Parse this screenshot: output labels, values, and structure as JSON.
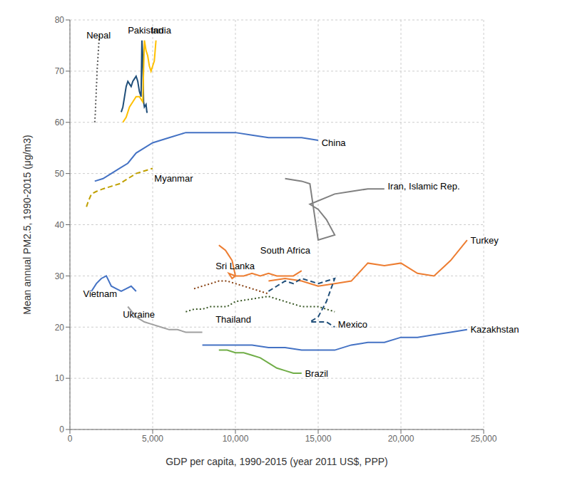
{
  "chart_data": {
    "type": "line",
    "xlabel": "GDP per capita,  1990-2015 (year 2011 US$, PPP)",
    "ylabel": "Mean annual PM2.5, 1990-2015 (μg/m3)",
    "xlim": [
      0,
      25000
    ],
    "ylim": [
      0,
      80
    ],
    "xticks": [
      0,
      {
        "value": 5000,
        "label": "5,000"
      },
      {
        "value": 10000,
        "label": "10,000"
      },
      {
        "value": 15000,
        "label": "15,000"
      },
      {
        "value": 20000,
        "label": "20,000"
      },
      {
        "value": 25000,
        "label": "25,000"
      }
    ],
    "yticks": [
      0,
      10,
      20,
      30,
      40,
      50,
      60,
      70,
      80
    ],
    "grid": true,
    "series": [
      {
        "name": "Nepal",
        "color": "#595959",
        "line_style": "dotted",
        "x": [
          1500,
          1520,
          1540,
          1560,
          1580,
          1600,
          1620,
          1640,
          1660,
          1680,
          1700,
          1720,
          1740,
          1760,
          1780,
          1800
        ],
        "values": [
          60,
          61,
          62,
          64,
          65,
          67,
          68,
          70,
          71,
          72,
          73,
          74,
          75,
          76,
          77,
          77
        ]
      },
      {
        "name": "Pakistan",
        "color": "#1f4e79",
        "line_style": "solid",
        "x": [
          3100,
          3200,
          3300,
          3400,
          3500,
          3600,
          3700,
          3800,
          3900,
          4000,
          4100,
          4200,
          4300,
          4350,
          4400,
          4450,
          4500,
          4600,
          4650,
          4700
        ],
        "values": [
          62,
          63,
          65,
          67,
          68,
          67.5,
          67,
          68,
          68.5,
          69,
          68,
          66,
          65,
          76,
          73,
          64,
          63,
          63.5,
          62,
          62
        ]
      },
      {
        "name": "India",
        "color": "#ffc000",
        "line_style": "solid",
        "x": [
          3200,
          3400,
          3600,
          3800,
          4000,
          4200,
          4400,
          4500,
          4600,
          4700,
          4800,
          4900,
          5000,
          5100,
          5200
        ],
        "values": [
          60,
          61,
          63,
          64,
          65,
          65,
          64,
          76,
          74,
          73,
          71,
          70,
          71,
          72,
          76
        ]
      },
      {
        "name": "China",
        "color": "#4472c4",
        "line_style": "solid",
        "x": [
          1500,
          2000,
          2500,
          3000,
          3500,
          4000,
          5000,
          6000,
          7000,
          8000,
          9000,
          10000,
          11000,
          12000,
          13000,
          14000,
          15000
        ],
        "values": [
          48.5,
          49,
          50,
          51,
          52,
          54,
          56,
          57,
          58,
          58,
          58,
          58,
          57.5,
          57,
          57,
          57,
          56.5
        ]
      },
      {
        "name": "Myanmar",
        "color": "#c0a000",
        "line_style": "dashed",
        "x": [
          1000,
          1100,
          1300,
          1600,
          2000,
          2500,
          3000,
          3500,
          4000,
          4500,
          5000
        ],
        "values": [
          43.5,
          44.5,
          46,
          46.5,
          47,
          47.5,
          48,
          49,
          50,
          50.5,
          51
        ]
      },
      {
        "name": "Iran, Islamic Rep.",
        "color": "#808080",
        "line_style": "solid",
        "x": [
          13000,
          14000,
          14500,
          15000,
          16000,
          15500,
          15000,
          14500,
          16000,
          17000,
          18000,
          19000
        ],
        "values": [
          49,
          48.5,
          48,
          37,
          38,
          41,
          43,
          44,
          46,
          46.5,
          47,
          47
        ]
      },
      {
        "name": "South Africa",
        "color": "#ed7d31",
        "line_style": "solid",
        "x": [
          9000,
          9200,
          9400,
          9600,
          9800,
          10000,
          9800,
          9600,
          10000,
          10500,
          11000,
          11500,
          12000,
          12500,
          13000,
          13500,
          14000
        ],
        "values": [
          36,
          35.5,
          35,
          34,
          33,
          30,
          29.5,
          30.5,
          30,
          30,
          30.5,
          30,
          30.5,
          30,
          30,
          30,
          31
        ]
      },
      {
        "name": "Sri Lanka",
        "color": "#843c0c",
        "line_style": "dotted",
        "x": [
          7500,
          8000,
          8500,
          9000,
          9500,
          10000,
          10500,
          11000,
          11500,
          12000
        ],
        "values": [
          27.5,
          28,
          28.5,
          29,
          29,
          28.5,
          28,
          27.5,
          27,
          26.5
        ]
      },
      {
        "name": "Turkey",
        "color": "#ed7d31",
        "line_style": "solid",
        "x": [
          12000,
          13000,
          14000,
          15000,
          16000,
          17000,
          18000,
          19000,
          20000,
          21000,
          22000,
          23000,
          24000
        ],
        "values": [
          29,
          29.5,
          29,
          28,
          28.5,
          29,
          32.5,
          32,
          32.5,
          30.5,
          30,
          33,
          37
        ]
      },
      {
        "name": "Vietnam",
        "color": "#4472c4",
        "line_style": "solid",
        "x": [
          1300,
          1600,
          1900,
          2200,
          2500,
          2800,
          3100,
          3400,
          3700,
          4000
        ],
        "values": [
          27,
          28.5,
          29.5,
          30,
          28,
          27.5,
          27,
          27.5,
          28,
          27
        ]
      },
      {
        "name": "Ukraine",
        "color": "#a0a0a0",
        "line_style": "solid",
        "x": [
          3500,
          4000,
          4500,
          5000,
          5500,
          6000,
          6500,
          7000,
          7500,
          8000
        ],
        "values": [
          24,
          22,
          21,
          20.5,
          20,
          19.5,
          19.5,
          19,
          19,
          19
        ]
      },
      {
        "name": "Thailand",
        "color": "#375623",
        "line_style": "dotted",
        "x": [
          7000,
          7500,
          8000,
          8500,
          9000,
          9500,
          10000,
          11000,
          12000,
          13000,
          14000,
          15000,
          16000
        ],
        "values": [
          23,
          23.5,
          23.5,
          24,
          24,
          24,
          25,
          25.5,
          26,
          25,
          24,
          24,
          23
        ]
      },
      {
        "name": "Mexico",
        "color": "#1f4e79",
        "line_style": "dashed",
        "x": [
          12000,
          12500,
          13000,
          13500,
          14000,
          14500,
          15000,
          15500,
          16000,
          15500,
          15000,
          14500,
          15000,
          15500,
          16000
        ],
        "values": [
          27,
          28,
          29,
          28.5,
          29.5,
          29,
          28.5,
          29,
          29.5,
          25,
          22,
          21,
          21,
          21,
          20
        ]
      },
      {
        "name": "Brazil",
        "color": "#70ad47",
        "line_style": "solid",
        "x": [
          9000,
          9500,
          10000,
          10500,
          11000,
          11500,
          12000,
          12500,
          13000,
          13500,
          14000
        ],
        "values": [
          15.5,
          15.5,
          15,
          15,
          14.5,
          14,
          13,
          12,
          11.5,
          11,
          11
        ]
      },
      {
        "name": "Kazakhstan",
        "color": "#4472c4",
        "line_style": "solid",
        "x": [
          8000,
          9000,
          10000,
          11000,
          12000,
          13000,
          14000,
          15000,
          16000,
          17000,
          18000,
          19000,
          20000,
          21000,
          22000,
          23000,
          24000
        ],
        "values": [
          16.5,
          16.5,
          16.5,
          16.5,
          16,
          16,
          15.5,
          15.5,
          15.5,
          16.5,
          17,
          17,
          18,
          18,
          18.5,
          19,
          19.5
        ]
      }
    ],
    "annotations": [
      {
        "text": "Nepal",
        "x": 1000,
        "y": 77
      },
      {
        "text": "Pakistan",
        "x": 3500,
        "y": 78
      },
      {
        "text": "India",
        "x": 4900,
        "y": 78
      },
      {
        "text": "China",
        "x": 15200,
        "y": 56
      },
      {
        "text": "Myanmar",
        "x": 5100,
        "y": 49
      },
      {
        "text": "Iran, Islamic Rep.",
        "x": 19200,
        "y": 47.5
      },
      {
        "text": "South Africa",
        "x": 11500,
        "y": 35
      },
      {
        "text": "Sri Lanka",
        "x": 8800,
        "y": 32
      },
      {
        "text": "Turkey",
        "x": 24200,
        "y": 37
      },
      {
        "text": "Vietnam",
        "x": 800,
        "y": 26.5
      },
      {
        "text": "Ukraine",
        "x": 3200,
        "y": 22.5
      },
      {
        "text": "Thailand",
        "x": 8800,
        "y": 21.5
      },
      {
        "text": "Mexico",
        "x": 16200,
        "y": 20.5
      },
      {
        "text": "Brazil",
        "x": 14200,
        "y": 11
      },
      {
        "text": "Kazakhstan",
        "x": 24200,
        "y": 19.5
      }
    ]
  }
}
